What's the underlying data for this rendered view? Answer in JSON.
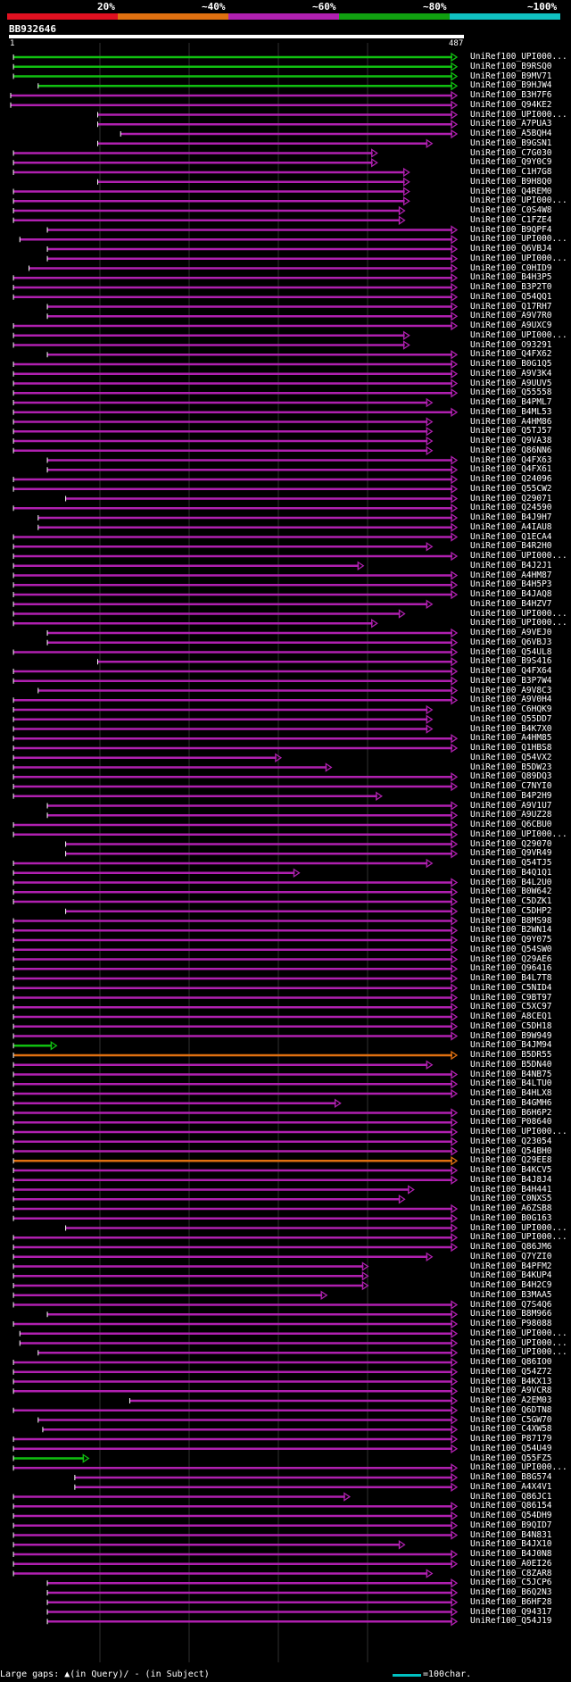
{
  "query": {
    "name": "BB932646",
    "start": "1",
    "end": "487"
  },
  "legend": [
    {
      "label": "20%",
      "color": "#e01020"
    },
    {
      "label": "~40%",
      "color": "#e07010"
    },
    {
      "label": "~60%",
      "color": "#b020b0"
    },
    {
      "label": "~80%",
      "color": "#10a010"
    },
    {
      "label": "~100%",
      "color": "#10c0c0"
    }
  ],
  "footer": {
    "text": "Large gaps: ▲(in Query)/ - (in Subject)",
    "scale": "=100char."
  },
  "hits": [
    {
      "name": "UniRef100_UPI000...",
      "color": "#10c010",
      "s": 3,
      "e": 487
    },
    {
      "name": "UniRef100_B9RSQ0",
      "color": "#10c010",
      "s": 3,
      "e": 487
    },
    {
      "name": "UniRef100_B9MV71",
      "color": "#10c010",
      "s": 3,
      "e": 487
    },
    {
      "name": "UniRef100_B9HJW4",
      "color": "#10c010",
      "s": 30,
      "e": 487
    },
    {
      "name": "UniRef100_B3H7F6",
      "color": "#b020b0",
      "s": 0,
      "e": 487
    },
    {
      "name": "UniRef100_Q94KE2",
      "color": "#b020b0",
      "s": 0,
      "e": 487
    },
    {
      "name": "UniRef100_UPI000...",
      "color": "#b020b0",
      "s": 95,
      "e": 487
    },
    {
      "name": "UniRef100_A7PUA3",
      "color": "#b020b0",
      "s": 95,
      "e": 487
    },
    {
      "name": "UniRef100_A5BQH4",
      "color": "#b020b0",
      "s": 120,
      "e": 487
    },
    {
      "name": "UniRef100_B9GSN1",
      "color": "#b020b0",
      "s": 95,
      "e": 460
    },
    {
      "name": "UniRef100_C7G030",
      "color": "#b020b0",
      "s": 3,
      "e": 400
    },
    {
      "name": "UniRef100_Q9Y0C9",
      "color": "#b020b0",
      "s": 3,
      "e": 400
    },
    {
      "name": "UniRef100_C1H7G8",
      "color": "#b020b0",
      "s": 3,
      "e": 435
    },
    {
      "name": "UniRef100_B9H8Q0",
      "color": "#b020b0",
      "s": 95,
      "e": 435
    },
    {
      "name": "UniRef100_Q4REM0",
      "color": "#b020b0",
      "s": 3,
      "e": 435
    },
    {
      "name": "UniRef100_UPI000...",
      "color": "#b020b0",
      "s": 3,
      "e": 435
    },
    {
      "name": "UniRef100_C0S4W8",
      "color": "#b020b0",
      "s": 3,
      "e": 430
    },
    {
      "name": "UniRef100_C1FZE4",
      "color": "#b020b0",
      "s": 3,
      "e": 430
    },
    {
      "name": "UniRef100_B9QPF4",
      "color": "#b020b0",
      "s": 40,
      "e": 487
    },
    {
      "name": "UniRef100_UPI000...",
      "color": "#b020b0",
      "s": 10,
      "e": 487
    },
    {
      "name": "UniRef100_Q6VBJ4",
      "color": "#b020b0",
      "s": 40,
      "e": 487
    },
    {
      "name": "UniRef100_UPI000...",
      "color": "#b020b0",
      "s": 40,
      "e": 487
    },
    {
      "name": "UniRef100_C0HID9",
      "color": "#b020b0",
      "s": 20,
      "e": 487
    },
    {
      "name": "UniRef100_B4H3P5",
      "color": "#b020b0",
      "s": 3,
      "e": 487
    },
    {
      "name": "UniRef100_B3P2T0",
      "color": "#b020b0",
      "s": 3,
      "e": 487
    },
    {
      "name": "UniRef100_Q54QQ1",
      "color": "#b020b0",
      "s": 3,
      "e": 487
    },
    {
      "name": "UniRef100_Q17RH7",
      "color": "#b020b0",
      "s": 40,
      "e": 487
    },
    {
      "name": "UniRef100_A9V7R0",
      "color": "#b020b0",
      "s": 40,
      "e": 487
    },
    {
      "name": "UniRef100_A9UXC9",
      "color": "#b020b0",
      "s": 3,
      "e": 487
    },
    {
      "name": "UniRef100_UPI000...",
      "color": "#b020b0",
      "s": 3,
      "e": 435
    },
    {
      "name": "UniRef100_O93291",
      "color": "#b020b0",
      "s": 3,
      "e": 435
    },
    {
      "name": "UniRef100_Q4FX62",
      "color": "#b020b0",
      "s": 40,
      "e": 487
    },
    {
      "name": "UniRef100_B0G1Q5",
      "color": "#b020b0",
      "s": 3,
      "e": 487
    },
    {
      "name": "UniRef100_A9V3K4",
      "color": "#b020b0",
      "s": 3,
      "e": 487
    },
    {
      "name": "UniRef100_A9UUV5",
      "color": "#b020b0",
      "s": 3,
      "e": 487
    },
    {
      "name": "UniRef100_Q55558",
      "color": "#b020b0",
      "s": 3,
      "e": 487
    },
    {
      "name": "UniRef100_B4PML7",
      "color": "#b020b0",
      "s": 3,
      "e": 460
    },
    {
      "name": "UniRef100_B4ML53",
      "color": "#b020b0",
      "s": 3,
      "e": 487
    },
    {
      "name": "UniRef100_A4HM86",
      "color": "#b020b0",
      "s": 3,
      "e": 460
    },
    {
      "name": "UniRef100_Q5TJ57",
      "color": "#b020b0",
      "s": 3,
      "e": 460
    },
    {
      "name": "UniRef100_Q9VA38",
      "color": "#b020b0",
      "s": 3,
      "e": 460
    },
    {
      "name": "UniRef100_Q86NN6",
      "color": "#b020b0",
      "s": 3,
      "e": 460
    },
    {
      "name": "UniRef100_Q4FX63",
      "color": "#b020b0",
      "s": 40,
      "e": 487
    },
    {
      "name": "UniRef100_Q4FX61",
      "color": "#b020b0",
      "s": 40,
      "e": 487
    },
    {
      "name": "UniRef100_Q24096",
      "color": "#b020b0",
      "s": 3,
      "e": 487
    },
    {
      "name": "UniRef100_Q55CW2",
      "color": "#b020b0",
      "s": 3,
      "e": 487
    },
    {
      "name": "UniRef100_Q29071",
      "color": "#b020b0",
      "s": 60,
      "e": 487
    },
    {
      "name": "UniRef100_Q24590",
      "color": "#b020b0",
      "s": 3,
      "e": 487
    },
    {
      "name": "UniRef100_B4J9H7",
      "color": "#b020b0",
      "s": 30,
      "e": 487
    },
    {
      "name": "UniRef100_A4IAU8",
      "color": "#b020b0",
      "s": 30,
      "e": 487
    },
    {
      "name": "UniRef100_Q1ECA4",
      "color": "#b020b0",
      "s": 3,
      "e": 487
    },
    {
      "name": "UniRef100_B4R2H0",
      "color": "#b020b0",
      "s": 3,
      "e": 460
    },
    {
      "name": "UniRef100_UPI000...",
      "color": "#b020b0",
      "s": 3,
      "e": 487
    },
    {
      "name": "UniRef100_B4J2J1",
      "color": "#b020b0",
      "s": 3,
      "e": 385
    },
    {
      "name": "UniRef100_A4HM87",
      "color": "#b020b0",
      "s": 3,
      "e": 487
    },
    {
      "name": "UniRef100_B4H5P3",
      "color": "#b020b0",
      "s": 3,
      "e": 487
    },
    {
      "name": "UniRef100_B4JAQ8",
      "color": "#b020b0",
      "s": 3,
      "e": 487
    },
    {
      "name": "UniRef100_B4HZV7",
      "color": "#b020b0",
      "s": 3,
      "e": 460
    },
    {
      "name": "UniRef100_UPI000...",
      "color": "#b020b0",
      "s": 3,
      "e": 430
    },
    {
      "name": "UniRef100_UPI000...",
      "color": "#b020b0",
      "s": 3,
      "e": 400
    },
    {
      "name": "UniRef100_A9VEJ0",
      "color": "#b020b0",
      "s": 40,
      "e": 487
    },
    {
      "name": "UniRef100_Q6VBJ3",
      "color": "#b020b0",
      "s": 40,
      "e": 487
    },
    {
      "name": "UniRef100_Q54UL8",
      "color": "#b020b0",
      "s": 3,
      "e": 487
    },
    {
      "name": "UniRef100_B9S416",
      "color": "#b020b0",
      "s": 95,
      "e": 487
    },
    {
      "name": "UniRef100_Q4FX64",
      "color": "#b020b0",
      "s": 3,
      "e": 487
    },
    {
      "name": "UniRef100_B3P7W4",
      "color": "#b020b0",
      "s": 3,
      "e": 487
    },
    {
      "name": "UniRef100_A9V8C3",
      "color": "#b020b0",
      "s": 30,
      "e": 487
    },
    {
      "name": "UniRef100_A9V0H4",
      "color": "#b020b0",
      "s": 3,
      "e": 487
    },
    {
      "name": "UniRef100_C6HQK9",
      "color": "#b020b0",
      "s": 3,
      "e": 460
    },
    {
      "name": "UniRef100_Q55DD7",
      "color": "#b020b0",
      "s": 3,
      "e": 460
    },
    {
      "name": "UniRef100_B4K7X0",
      "color": "#b020b0",
      "s": 3,
      "e": 460
    },
    {
      "name": "UniRef100_A4HM85",
      "color": "#b020b0",
      "s": 3,
      "e": 487
    },
    {
      "name": "UniRef100_Q1HBS8",
      "color": "#b020b0",
      "s": 3,
      "e": 487
    },
    {
      "name": "UniRef100_Q54VX2",
      "color": "#b020b0",
      "s": 3,
      "e": 295
    },
    {
      "name": "UniRef100_B5DW23",
      "color": "#b020b0",
      "s": 3,
      "e": 350
    },
    {
      "name": "UniRef100_Q89DQ3",
      "color": "#b020b0",
      "s": 3,
      "e": 487
    },
    {
      "name": "UniRef100_C7NYI0",
      "color": "#b020b0",
      "s": 3,
      "e": 487
    },
    {
      "name": "UniRef100_B4P2H9",
      "color": "#b020b0",
      "s": 3,
      "e": 405
    },
    {
      "name": "UniRef100_A9V1U7",
      "color": "#b020b0",
      "s": 40,
      "e": 487
    },
    {
      "name": "UniRef100_A9UZ28",
      "color": "#b020b0",
      "s": 40,
      "e": 487
    },
    {
      "name": "UniRef100_Q6CBU0",
      "color": "#b020b0",
      "s": 3,
      "e": 487
    },
    {
      "name": "UniRef100_UPI000...",
      "color": "#b020b0",
      "s": 3,
      "e": 487
    },
    {
      "name": "UniRef100_Q29070",
      "color": "#b020b0",
      "s": 60,
      "e": 487
    },
    {
      "name": "UniRef100_Q9VR49",
      "color": "#b020b0",
      "s": 60,
      "e": 487
    },
    {
      "name": "UniRef100_Q54TJ5",
      "color": "#b020b0",
      "s": 3,
      "e": 460
    },
    {
      "name": "UniRef100_B4Q1Q1",
      "color": "#b020b0",
      "s": 3,
      "e": 315
    },
    {
      "name": "UniRef100_B4L2U0",
      "color": "#b020b0",
      "s": 3,
      "e": 487
    },
    {
      "name": "UniRef100_B0W642",
      "color": "#b020b0",
      "s": 3,
      "e": 487
    },
    {
      "name": "UniRef100_C5DZK1",
      "color": "#b020b0",
      "s": 3,
      "e": 487
    },
    {
      "name": "UniRef100_C5DHP2",
      "color": "#b020b0",
      "s": 60,
      "e": 487
    },
    {
      "name": "UniRef100_B8MS98",
      "color": "#b020b0",
      "s": 3,
      "e": 487
    },
    {
      "name": "UniRef100_B2WN14",
      "color": "#b020b0",
      "s": 3,
      "e": 487
    },
    {
      "name": "UniRef100_Q9Y075",
      "color": "#b020b0",
      "s": 3,
      "e": 487
    },
    {
      "name": "UniRef100_Q54SW0",
      "color": "#b020b0",
      "s": 3,
      "e": 487
    },
    {
      "name": "UniRef100_Q29AE6",
      "color": "#b020b0",
      "s": 3,
      "e": 487
    },
    {
      "name": "UniRef100_Q96416",
      "color": "#b020b0",
      "s": 3,
      "e": 487
    },
    {
      "name": "UniRef100_B4L7T8",
      "color": "#b020b0",
      "s": 3,
      "e": 487
    },
    {
      "name": "UniRef100_C5NID4",
      "color": "#b020b0",
      "s": 3,
      "e": 487
    },
    {
      "name": "UniRef100_C9BT97",
      "color": "#b020b0",
      "s": 3,
      "e": 487
    },
    {
      "name": "UniRef100_C5XC97",
      "color": "#b020b0",
      "s": 3,
      "e": 487
    },
    {
      "name": "UniRef100_A8CEQ1",
      "color": "#b020b0",
      "s": 3,
      "e": 487
    },
    {
      "name": "UniRef100_C5DH18",
      "color": "#b020b0",
      "s": 3,
      "e": 487
    },
    {
      "name": "UniRef100_B9W949",
      "color": "#b020b0",
      "s": 3,
      "e": 487
    },
    {
      "name": "UniRef100_B4JM94",
      "color": "#10c010",
      "s": 3,
      "e": 50
    },
    {
      "name": "UniRef100_B5DR55",
      "color": "#e07010",
      "s": 3,
      "e": 487
    },
    {
      "name": "UniRef100_B5DN40",
      "color": "#b020b0",
      "s": 3,
      "e": 460
    },
    {
      "name": "UniRef100_B4NB75",
      "color": "#b020b0",
      "s": 3,
      "e": 487
    },
    {
      "name": "UniRef100_B4LTU0",
      "color": "#b020b0",
      "s": 3,
      "e": 487
    },
    {
      "name": "UniRef100_B4HLX8",
      "color": "#b020b0",
      "s": 3,
      "e": 487
    },
    {
      "name": "UniRef100_B4GMH6",
      "color": "#b020b0",
      "s": 3,
      "e": 360
    },
    {
      "name": "UniRef100_B6H6P2",
      "color": "#b020b0",
      "s": 3,
      "e": 487
    },
    {
      "name": "UniRef100_P08640",
      "color": "#b020b0",
      "s": 3,
      "e": 487
    },
    {
      "name": "UniRef100_UPI000...",
      "color": "#b020b0",
      "s": 3,
      "e": 487
    },
    {
      "name": "UniRef100_Q23054",
      "color": "#b020b0",
      "s": 3,
      "e": 487
    },
    {
      "name": "UniRef100_Q54BH0",
      "color": "#b020b0",
      "s": 3,
      "e": 487
    },
    {
      "name": "UniRef100_Q29EE8",
      "color": "#e07010",
      "s": 3,
      "e": 487
    },
    {
      "name": "UniRef100_B4KCV5",
      "color": "#b020b0",
      "s": 3,
      "e": 487
    },
    {
      "name": "UniRef100_B4J8J4",
      "color": "#b020b0",
      "s": 3,
      "e": 487
    },
    {
      "name": "UniRef100_B4H441",
      "color": "#b020b0",
      "s": 3,
      "e": 440
    },
    {
      "name": "UniRef100_C0NXS5",
      "color": "#b020b0",
      "s": 3,
      "e": 430
    },
    {
      "name": "UniRef100_A6ZSB8",
      "color": "#b020b0",
      "s": 3,
      "e": 487
    },
    {
      "name": "UniRef100_B0G163",
      "color": "#b020b0",
      "s": 3,
      "e": 487
    },
    {
      "name": "UniRef100_UPI000...",
      "color": "#b020b0",
      "s": 60,
      "e": 487
    },
    {
      "name": "UniRef100_UPI000...",
      "color": "#b020b0",
      "s": 3,
      "e": 487
    },
    {
      "name": "UniRef100_Q86JM6",
      "color": "#b020b0",
      "s": 3,
      "e": 487
    },
    {
      "name": "UniRef100_Q7YZI0",
      "color": "#b020b0",
      "s": 3,
      "e": 460
    },
    {
      "name": "UniRef100_B4PFM2",
      "color": "#b020b0",
      "s": 3,
      "e": 390
    },
    {
      "name": "UniRef100_B4KUP4",
      "color": "#b020b0",
      "s": 3,
      "e": 390
    },
    {
      "name": "UniRef100_B4H2C9",
      "color": "#b020b0",
      "s": 3,
      "e": 390
    },
    {
      "name": "UniRef100_B3MAA5",
      "color": "#b020b0",
      "s": 3,
      "e": 345
    },
    {
      "name": "UniRef100_Q7S4Q6",
      "color": "#b020b0",
      "s": 3,
      "e": 487
    },
    {
      "name": "UniRef100_B8M966",
      "color": "#b020b0",
      "s": 40,
      "e": 487
    },
    {
      "name": "UniRef100_P98088",
      "color": "#b020b0",
      "s": 3,
      "e": 487
    },
    {
      "name": "UniRef100_UPI000...",
      "color": "#b020b0",
      "s": 10,
      "e": 487
    },
    {
      "name": "UniRef100_UPI000...",
      "color": "#b020b0",
      "s": 10,
      "e": 487
    },
    {
      "name": "UniRef100_UPI000...",
      "color": "#b020b0",
      "s": 30,
      "e": 487
    },
    {
      "name": "UniRef100_Q86IO0",
      "color": "#b020b0",
      "s": 3,
      "e": 487
    },
    {
      "name": "UniRef100_Q54Z72",
      "color": "#b020b0",
      "s": 3,
      "e": 487
    },
    {
      "name": "UniRef100_B4KX13",
      "color": "#b020b0",
      "s": 3,
      "e": 487
    },
    {
      "name": "UniRef100_A9VCR8",
      "color": "#b020b0",
      "s": 3,
      "e": 487
    },
    {
      "name": "UniRef100_A2EM03",
      "color": "#b020b0",
      "s": 130,
      "e": 487
    },
    {
      "name": "UniRef100_Q6DTN8",
      "color": "#b020b0",
      "s": 3,
      "e": 487
    },
    {
      "name": "UniRef100_C5GW70",
      "color": "#b020b0",
      "s": 30,
      "e": 487
    },
    {
      "name": "UniRef100_C4XW58",
      "color": "#b020b0",
      "s": 35,
      "e": 487
    },
    {
      "name": "UniRef100_P87179",
      "color": "#b020b0",
      "s": 3,
      "e": 487
    },
    {
      "name": "UniRef100_Q54U49",
      "color": "#b020b0",
      "s": 3,
      "e": 487
    },
    {
      "name": "UniRef100_Q55FZ5",
      "color": "#10c010",
      "s": 3,
      "e": 85
    },
    {
      "name": "UniRef100_UPI000...",
      "color": "#b020b0",
      "s": 3,
      "e": 487
    },
    {
      "name": "UniRef100_B8G574",
      "color": "#b020b0",
      "s": 70,
      "e": 487
    },
    {
      "name": "UniRef100_A4X4V1",
      "color": "#b020b0",
      "s": 70,
      "e": 487
    },
    {
      "name": "UniRef100_Q86JC1",
      "color": "#b020b0",
      "s": 3,
      "e": 370
    },
    {
      "name": "UniRef100_Q86154",
      "color": "#b020b0",
      "s": 3,
      "e": 487
    },
    {
      "name": "UniRef100_Q54DH9",
      "color": "#b020b0",
      "s": 3,
      "e": 487
    },
    {
      "name": "UniRef100_B9QID7",
      "color": "#b020b0",
      "s": 3,
      "e": 487
    },
    {
      "name": "UniRef100_B4N831",
      "color": "#b020b0",
      "s": 3,
      "e": 487
    },
    {
      "name": "UniRef100_B4JX10",
      "color": "#b020b0",
      "s": 3,
      "e": 430
    },
    {
      "name": "UniRef100_B4J0N8",
      "color": "#b020b0",
      "s": 3,
      "e": 487
    },
    {
      "name": "UniRef100_A0EI26",
      "color": "#b020b0",
      "s": 3,
      "e": 487
    },
    {
      "name": "UniRef100_C8ZAR8",
      "color": "#b020b0",
      "s": 3,
      "e": 460
    },
    {
      "name": "UniRef100_C5JCP6",
      "color": "#b020b0",
      "s": 40,
      "e": 487
    },
    {
      "name": "UniRef100_B6Q2N3",
      "color": "#b020b0",
      "s": 40,
      "e": 487
    },
    {
      "name": "UniRef100_B6HF28",
      "color": "#b020b0",
      "s": 40,
      "e": 487
    },
    {
      "name": "UniRef100_Q94317",
      "color": "#b020b0",
      "s": 40,
      "e": 487
    },
    {
      "name": "UniRef100_Q54J19",
      "color": "#b020b0",
      "s": 40,
      "e": 487
    }
  ]
}
